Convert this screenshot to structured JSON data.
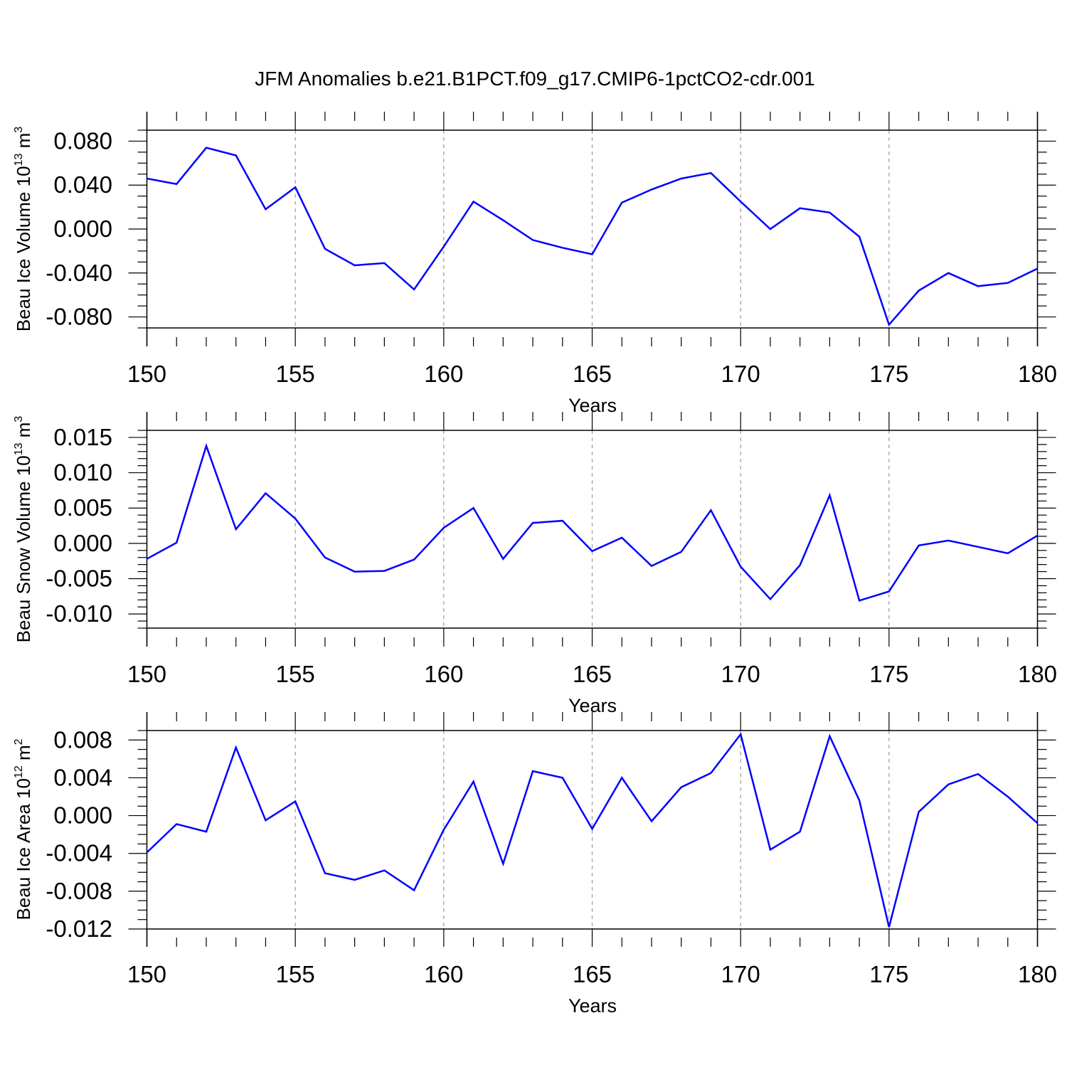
{
  "title": "JFM Anomalies b.e21.B1PCT.f09_g17.CMIP6-1pctCO2-cdr.001",
  "chart_data": [
    {
      "type": "line",
      "title": "JFM Anomalies b.e21.B1PCT.f09_g17.CMIP6-1pctCO2-cdr.001",
      "ylabel": {
        "main": "Beau Ice Volume 10",
        "exp": "13",
        "unit": " m",
        "unit_exp": "3"
      },
      "xlabel": "Years",
      "xlim": [
        150,
        180
      ],
      "ylim": [
        -0.09,
        0.09
      ],
      "x_ticks": [
        150,
        155,
        160,
        165,
        170,
        175,
        180
      ],
      "y_ticks": [
        -0.08,
        -0.04,
        0.0,
        0.04,
        0.08
      ],
      "y_tick_labels": [
        "-0.080",
        "-0.040",
        "0.000",
        "0.040",
        "0.080"
      ],
      "y_minor_step": 0.01,
      "grid": "dashed vertical at major x ticks",
      "color": "#0000ff",
      "x": [
        150,
        151,
        152,
        153,
        154,
        155,
        156,
        157,
        158,
        159,
        160,
        161,
        162,
        163,
        164,
        165,
        166,
        167,
        168,
        169,
        170,
        171,
        172,
        173,
        174,
        175,
        176,
        177,
        178,
        179,
        180
      ],
      "values": [
        0.046,
        0.041,
        0.074,
        0.067,
        0.018,
        0.038,
        -0.018,
        -0.033,
        -0.031,
        -0.055,
        -0.016,
        0.025,
        0.008,
        -0.01,
        -0.017,
        -0.023,
        0.024,
        0.036,
        0.046,
        0.051,
        0.025,
        0.0,
        0.019,
        0.015,
        -0.007,
        -0.087,
        -0.056,
        -0.04,
        -0.052,
        -0.049,
        -0.036
      ]
    },
    {
      "type": "line",
      "ylabel": {
        "main": "Beau Snow Volume 10",
        "exp": "13",
        "unit": " m",
        "unit_exp": "3"
      },
      "xlabel": "Years",
      "xlim": [
        150,
        180
      ],
      "ylim": [
        -0.012,
        0.016
      ],
      "x_ticks": [
        150,
        155,
        160,
        165,
        170,
        175,
        180
      ],
      "y_ticks": [
        -0.01,
        -0.005,
        0.0,
        0.005,
        0.01,
        0.015
      ],
      "y_tick_labels": [
        "-0.010",
        "-0.005",
        "0.000",
        "0.005",
        "0.010",
        "0.015"
      ],
      "y_minor_step": 0.001,
      "grid": "dashed vertical at major x ticks",
      "color": "#0000ff",
      "x": [
        150,
        151,
        152,
        153,
        154,
        155,
        156,
        157,
        158,
        159,
        160,
        161,
        162,
        163,
        164,
        165,
        166,
        167,
        168,
        169,
        170,
        171,
        172,
        173,
        174,
        175,
        176,
        177,
        178,
        179,
        180
      ],
      "values": [
        -0.0022,
        0.0001,
        0.0138,
        0.002,
        0.0071,
        0.0035,
        -0.002,
        -0.004,
        -0.0039,
        -0.0023,
        0.0022,
        0.005,
        -0.0022,
        0.0029,
        0.0032,
        -0.0011,
        0.0008,
        -0.0032,
        -0.0012,
        0.0047,
        -0.0033,
        -0.0079,
        -0.0031,
        0.0068,
        -0.0081,
        -0.0068,
        -0.0003,
        0.0004,
        -0.0005,
        -0.0014,
        0.0011
      ]
    },
    {
      "type": "line",
      "ylabel": {
        "main": "Beau Ice Area 10",
        "exp": "12",
        "unit": " m",
        "unit_exp": "2"
      },
      "xlabel": "Years",
      "xlim": [
        150,
        180
      ],
      "ylim": [
        -0.012,
        0.009
      ],
      "x_ticks": [
        150,
        155,
        160,
        165,
        170,
        175,
        180
      ],
      "y_ticks": [
        -0.012,
        -0.008,
        -0.004,
        0.0,
        0.004,
        0.008
      ],
      "y_tick_labels": [
        "-0.012",
        "-0.008",
        "-0.004",
        "0.000",
        "0.004",
        "0.008"
      ],
      "y_minor_step": 0.001,
      "grid": "dashed vertical at major x ticks",
      "color": "#0000ff",
      "x": [
        150,
        151,
        152,
        153,
        154,
        155,
        156,
        157,
        158,
        159,
        160,
        161,
        162,
        163,
        164,
        165,
        166,
        167,
        168,
        169,
        170,
        171,
        172,
        173,
        174,
        175,
        176,
        177,
        178,
        179,
        180
      ],
      "values": [
        -0.0039,
        -0.0009,
        -0.0017,
        0.0072,
        -0.0005,
        0.0015,
        -0.0061,
        -0.0068,
        -0.0058,
        -0.0079,
        -0.0015,
        0.0036,
        -0.0051,
        0.0047,
        0.004,
        -0.0014,
        0.004,
        -0.0006,
        0.003,
        0.0045,
        0.0086,
        -0.0036,
        -0.0017,
        0.0084,
        0.0016,
        -0.0118,
        0.0004,
        0.0033,
        0.0044,
        0.002,
        -0.0008
      ]
    }
  ]
}
